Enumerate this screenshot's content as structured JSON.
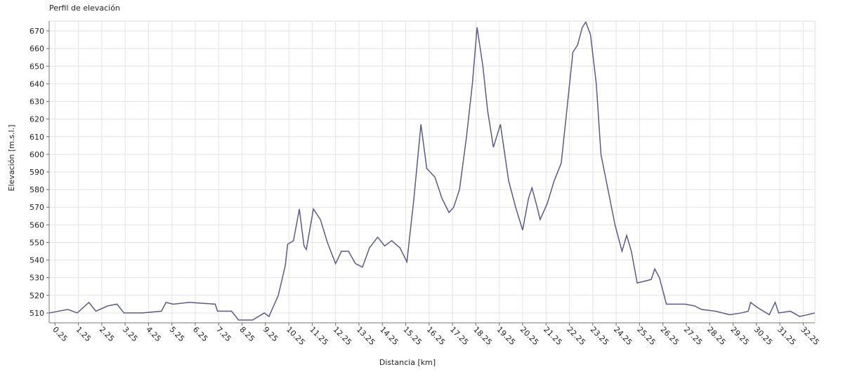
{
  "chart_data": {
    "type": "line",
    "title": "Perfil de elevación",
    "x_label": "Distancia [km]",
    "y_label": "Elevación [m.s.l.]",
    "x": [
      0,
      0.8,
      1.2,
      1.7,
      2.0,
      2.5,
      2.9,
      3.2,
      4.0,
      4.8,
      5.0,
      5.3,
      6.0,
      7.1,
      7.2,
      7.8,
      8.1,
      8.7,
      9.2,
      9.4,
      9.8,
      10.1,
      10.2,
      10.45,
      10.7,
      10.9,
      11.0,
      11.3,
      11.6,
      11.9,
      12.25,
      12.5,
      12.8,
      13.1,
      13.4,
      13.7,
      14.05,
      14.35,
      14.65,
      15.0,
      15.3,
      15.6,
      15.9,
      16.15,
      16.5,
      16.8,
      17.1,
      17.3,
      17.55,
      17.85,
      18.1,
      18.3,
      18.55,
      18.75,
      19.0,
      19.3,
      19.65,
      19.95,
      20.25,
      20.5,
      20.65,
      20.85,
      21.0,
      21.3,
      21.6,
      21.9,
      22.1,
      22.4,
      22.6,
      22.8,
      22.95,
      23.15,
      23.4,
      23.6,
      23.9,
      24.2,
      24.5,
      24.7,
      24.9,
      25.15,
      25.45,
      25.75,
      25.9,
      26.1,
      26.4,
      26.7,
      27.2,
      27.6,
      27.9,
      28.5,
      29.1,
      29.6,
      29.9,
      30.0,
      30.3,
      30.8,
      31.05,
      31.2,
      31.7,
      32.1,
      32.75
    ],
    "series": [
      {
        "color": "#5a5a8c",
        "values": [
          510,
          512,
          510,
          516,
          511,
          514,
          515,
          510,
          510,
          511,
          516,
          515,
          516,
          515,
          511,
          511,
          506,
          506,
          510,
          508,
          520,
          537,
          549,
          551,
          569,
          548,
          546,
          569,
          563,
          550,
          538,
          545,
          545,
          538,
          536,
          547,
          553,
          548,
          551,
          547,
          539,
          575,
          617,
          592,
          587,
          575,
          567,
          570,
          580,
          610,
          640,
          672,
          650,
          625,
          604,
          617,
          585,
          570,
          557,
          575,
          581,
          571,
          563,
          572,
          585,
          595,
          620,
          658,
          662,
          672,
          675,
          668,
          640,
          600,
          580,
          560,
          545,
          554,
          545,
          527,
          528,
          529,
          535,
          530,
          515,
          515,
          515,
          514,
          512,
          511,
          509,
          510,
          511,
          516,
          513,
          509,
          516,
          510,
          511,
          508,
          510
        ]
      }
    ],
    "xlim": [
      0,
      32.75
    ],
    "xticks": [
      0.25,
      1.25,
      2.25,
      3.25,
      4.25,
      5.25,
      6.25,
      7.25,
      8.25,
      9.25,
      10.25,
      11.25,
      12.25,
      13.25,
      14.25,
      15.25,
      16.25,
      17.25,
      18.25,
      19.25,
      20.25,
      21.25,
      22.25,
      23.25,
      24.25,
      25.25,
      26.25,
      27.25,
      28.25,
      29.25,
      30.25,
      31.25,
      32.25
    ],
    "ylim": [
      504.4,
      675.6
    ],
    "yticks": [
      510,
      520,
      530,
      540,
      550,
      560,
      570,
      580,
      590,
      600,
      610,
      620,
      630,
      640,
      650,
      660,
      670
    ],
    "grid": true
  }
}
